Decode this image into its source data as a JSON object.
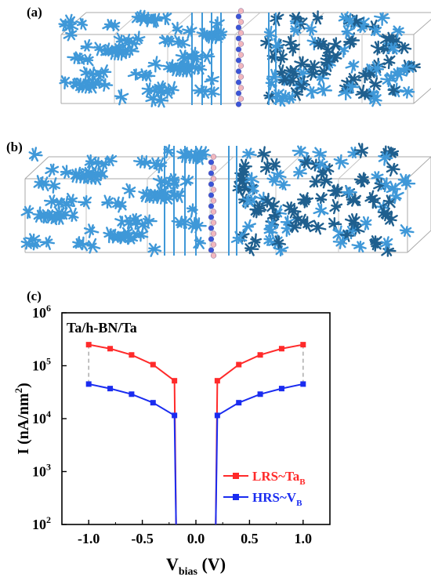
{
  "figure": {
    "panel_a_label": "(a)",
    "panel_b_label": "(b)",
    "panel_c_label": "(c)"
  },
  "colors": {
    "lattice_light": "#3f98d8",
    "lattice_dark": "#1f5f8e",
    "atom_b": "#f2b7bd",
    "atom_n": "#3a55d8",
    "lrs": "#ff2a2a",
    "hrs": "#1a2cf0",
    "dashed": "#b0b0b0"
  },
  "chart_data": {
    "type": "line",
    "title": "Ta/h-BN/Ta",
    "xlabel_main": "V",
    "xlabel_sub": "bias",
    "xlabel_unit": " (V)",
    "ylabel": "I (nA/nm",
    "ylabel_sup": "2",
    "ylabel_end": ")",
    "xlim": [
      -1.25,
      1.25
    ],
    "ylim_log10": [
      2,
      6
    ],
    "y_scale": "log",
    "x_ticks": [
      "-1.0",
      "-0.5",
      "0.0",
      "0.5",
      "1.0"
    ],
    "x_tick_values": [
      -1.0,
      -0.5,
      0.0,
      0.5,
      1.0
    ],
    "y_tick_exponents": [
      2,
      3,
      4,
      5,
      6
    ],
    "y_tick_base": "10",
    "legend_position": "bottom-right",
    "series": [
      {
        "name": "LRS~Ta",
        "name_sub": "B",
        "color": "#ff2a2a",
        "x": [
          -1.0,
          -0.8,
          -0.6,
          -0.4,
          -0.2,
          -0.185,
          0.185,
          0.2,
          0.4,
          0.6,
          0.8,
          1.0
        ],
        "y": [
          250000,
          210000,
          160000,
          105000,
          52000,
          100,
          100,
          52000,
          105000,
          160000,
          210000,
          250000
        ]
      },
      {
        "name": "HRS~V",
        "name_sub": "B",
        "color": "#1a2cf0",
        "x": [
          -1.0,
          -0.8,
          -0.6,
          -0.4,
          -0.2,
          -0.185,
          0.185,
          0.2,
          0.4,
          0.6,
          0.8,
          1.0
        ],
        "y": [
          45000,
          37000,
          29000,
          20000,
          11500,
          100,
          100,
          11500,
          20000,
          29000,
          37000,
          45000
        ]
      }
    ],
    "dashed_connectors_x": [
      -1.0,
      1.0
    ]
  }
}
